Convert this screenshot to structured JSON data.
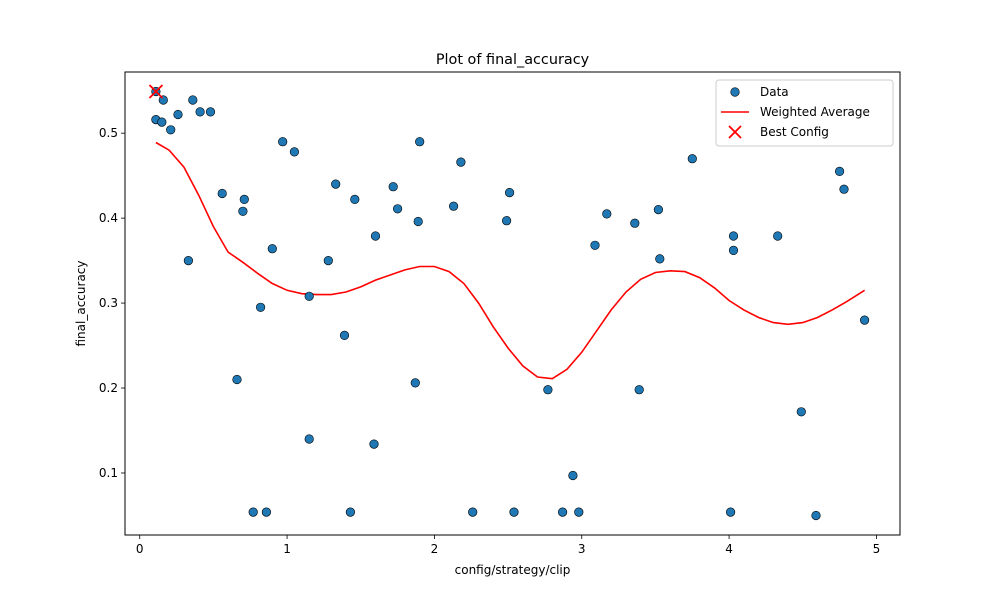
{
  "chart_data": {
    "type": "scatter",
    "title": "Plot of final_accuracy",
    "xlabel": "config/strategy/clip",
    "ylabel": "final_accuracy",
    "xlim": [
      -0.1,
      5.16
    ],
    "ylim": [
      0.027,
      0.572
    ],
    "xticks": [
      0,
      1,
      2,
      3,
      4,
      5
    ],
    "xtick_labels": [
      "0",
      "1",
      "2",
      "3",
      "4",
      "5"
    ],
    "yticks": [
      0.1,
      0.2,
      0.3,
      0.4,
      0.5
    ],
    "ytick_labels": [
      "0.1",
      "0.2",
      "0.3",
      "0.4",
      "0.5"
    ],
    "grid": false,
    "legend_position": "top-right",
    "series": [
      {
        "name": "Data",
        "kind": "scatter",
        "color": "#1f77b4",
        "points": [
          [
            0.11,
            0.549
          ],
          [
            0.11,
            0.516
          ],
          [
            0.15,
            0.513
          ],
          [
            0.16,
            0.539
          ],
          [
            0.21,
            0.504
          ],
          [
            0.26,
            0.522
          ],
          [
            0.33,
            0.35
          ],
          [
            0.36,
            0.539
          ],
          [
            0.41,
            0.525
          ],
          [
            0.48,
            0.525
          ],
          [
            0.56,
            0.429
          ],
          [
            0.66,
            0.21
          ],
          [
            0.7,
            0.408
          ],
          [
            0.71,
            0.422
          ],
          [
            0.77,
            0.054
          ],
          [
            0.82,
            0.295
          ],
          [
            0.86,
            0.054
          ],
          [
            0.9,
            0.364
          ],
          [
            0.97,
            0.49
          ],
          [
            1.05,
            0.478
          ],
          [
            1.15,
            0.308
          ],
          [
            1.15,
            0.14
          ],
          [
            1.28,
            0.35
          ],
          [
            1.33,
            0.44
          ],
          [
            1.39,
            0.262
          ],
          [
            1.43,
            0.054
          ],
          [
            1.46,
            0.422
          ],
          [
            1.59,
            0.134
          ],
          [
            1.6,
            0.379
          ],
          [
            1.72,
            0.437
          ],
          [
            1.75,
            0.411
          ],
          [
            1.87,
            0.206
          ],
          [
            1.89,
            0.396
          ],
          [
            1.9,
            0.49
          ],
          [
            2.13,
            0.414
          ],
          [
            2.18,
            0.466
          ],
          [
            2.26,
            0.054
          ],
          [
            2.49,
            0.397
          ],
          [
            2.51,
            0.43
          ],
          [
            2.54,
            0.054
          ],
          [
            2.77,
            0.198
          ],
          [
            2.87,
            0.054
          ],
          [
            2.94,
            0.097
          ],
          [
            2.98,
            0.054
          ],
          [
            3.09,
            0.368
          ],
          [
            3.17,
            0.405
          ],
          [
            3.36,
            0.394
          ],
          [
            3.39,
            0.198
          ],
          [
            3.52,
            0.41
          ],
          [
            3.53,
            0.352
          ],
          [
            3.75,
            0.47
          ],
          [
            4.01,
            0.054
          ],
          [
            4.03,
            0.379
          ],
          [
            4.03,
            0.362
          ],
          [
            4.33,
            0.379
          ],
          [
            4.49,
            0.172
          ],
          [
            4.59,
            0.05
          ],
          [
            4.75,
            0.455
          ],
          [
            4.78,
            0.434
          ],
          [
            4.92,
            0.28
          ]
        ]
      },
      {
        "name": "Weighted Average",
        "kind": "line",
        "color": "#ff0000",
        "points": [
          [
            0.11,
            0.489
          ],
          [
            0.2,
            0.48
          ],
          [
            0.3,
            0.46
          ],
          [
            0.4,
            0.427
          ],
          [
            0.5,
            0.39
          ],
          [
            0.6,
            0.36
          ],
          [
            0.7,
            0.348
          ],
          [
            0.8,
            0.335
          ],
          [
            0.9,
            0.323
          ],
          [
            1.0,
            0.315
          ],
          [
            1.1,
            0.311
          ],
          [
            1.2,
            0.31
          ],
          [
            1.3,
            0.31
          ],
          [
            1.4,
            0.313
          ],
          [
            1.5,
            0.319
          ],
          [
            1.6,
            0.327
          ],
          [
            1.7,
            0.333
          ],
          [
            1.8,
            0.339
          ],
          [
            1.9,
            0.343
          ],
          [
            2.0,
            0.343
          ],
          [
            2.1,
            0.337
          ],
          [
            2.2,
            0.323
          ],
          [
            2.3,
            0.3
          ],
          [
            2.4,
            0.272
          ],
          [
            2.5,
            0.247
          ],
          [
            2.6,
            0.226
          ],
          [
            2.7,
            0.213
          ],
          [
            2.8,
            0.211
          ],
          [
            2.9,
            0.222
          ],
          [
            3.0,
            0.242
          ],
          [
            3.1,
            0.267
          ],
          [
            3.2,
            0.292
          ],
          [
            3.3,
            0.313
          ],
          [
            3.4,
            0.328
          ],
          [
            3.5,
            0.336
          ],
          [
            3.6,
            0.338
          ],
          [
            3.7,
            0.337
          ],
          [
            3.8,
            0.33
          ],
          [
            3.9,
            0.318
          ],
          [
            4.0,
            0.303
          ],
          [
            4.1,
            0.292
          ],
          [
            4.2,
            0.283
          ],
          [
            4.3,
            0.277
          ],
          [
            4.4,
            0.275
          ],
          [
            4.5,
            0.277
          ],
          [
            4.6,
            0.283
          ],
          [
            4.7,
            0.292
          ],
          [
            4.8,
            0.302
          ],
          [
            4.92,
            0.315
          ]
        ]
      },
      {
        "name": "Best Config",
        "kind": "marker-x",
        "color": "#ff0000",
        "points": [
          [
            0.11,
            0.549
          ]
        ]
      }
    ]
  }
}
